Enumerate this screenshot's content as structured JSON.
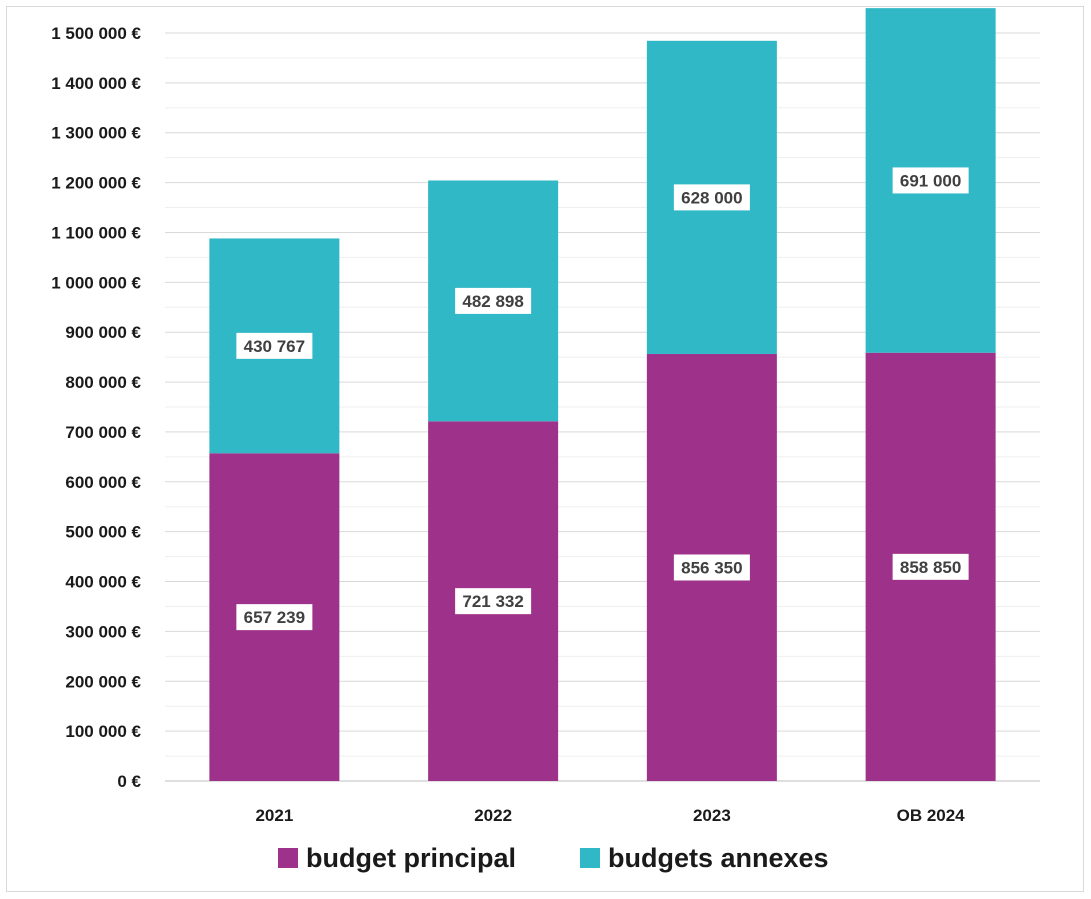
{
  "chart_data": {
    "type": "bar",
    "stacked": true,
    "categories": [
      "2021",
      "2022",
      "2023",
      "OB 2024"
    ],
    "series": [
      {
        "name": "budget principal",
        "values": [
          657239,
          721332,
          856350,
          858850
        ],
        "labels": [
          "657 239",
          "721 332",
          "856 350",
          "858 850"
        ],
        "color": "#9e318a"
      },
      {
        "name": "budgets annexes",
        "values": [
          430767,
          482898,
          628000,
          691000
        ],
        "labels": [
          "430 767",
          "482 898",
          "628 000",
          "691 000"
        ],
        "color": "#31b8c6"
      }
    ],
    "ylim": [
      0,
      1500000
    ],
    "y_ticks": [
      "0 €",
      "100 000 €",
      "200 000 €",
      "300 000 €",
      "400 000 €",
      "500 000 €",
      "600 000 €",
      "700 000 €",
      "800 000 €",
      "900 000 €",
      "1 000 000 €",
      "1 100 000 €",
      "1 200 000 €",
      "1 300 000 €",
      "1 400 000 €",
      "1 500 000 €"
    ],
    "grid": true,
    "legend_position": "bottom",
    "title": "",
    "xlabel": "",
    "ylabel": ""
  }
}
